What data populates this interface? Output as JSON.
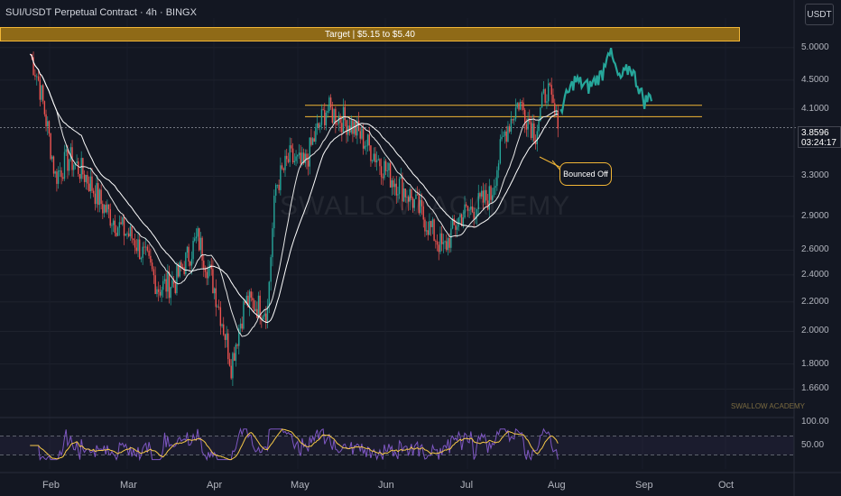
{
  "header": {
    "title": "SUI/USDT Perpetual Contract · 4h · BINGX",
    "currency_button": "USDT"
  },
  "annotations": {
    "target": "Target | $5.15 to $5.40",
    "bounce": "Bounced Off",
    "watermark": "SWALLOW ACADEMY",
    "brand": "SWALLOW ACADEMY"
  },
  "colors": {
    "background": "#131722",
    "up_candle": "#26a69a",
    "down_candle": "#ef5350",
    "target_band": "#f2b636",
    "ma_line": "#ffffff",
    "rsi_line": "#7e57c2",
    "rsi_signal": "#f7c948"
  },
  "current_price": {
    "value": "3.8596",
    "countdown": "03:24:17"
  },
  "chart_data": {
    "type": "line",
    "title": "SUI/USDT Perpetual Contract · 4h · BINGX",
    "x_months": [
      "Feb",
      "Mar",
      "Apr",
      "May",
      "Jun",
      "Jul",
      "Aug",
      "Sep",
      "Oct"
    ],
    "y_ticks": [
      "5.0000",
      "4.5000",
      "4.1000",
      "3.3000",
      "2.9000",
      "2.6000",
      "2.4000",
      "2.2000",
      "2.0000",
      "1.8000",
      "1.6600"
    ],
    "log_scale": true,
    "price_path": [
      {
        "x": "Jan 25",
        "y": 4.9
      },
      {
        "x": "Jan 28",
        "y": 4.5
      },
      {
        "x": "Feb 3",
        "y": 3.3
      },
      {
        "x": "Feb 8",
        "y": 3.5
      },
      {
        "x": "Feb 14",
        "y": 3.3
      },
      {
        "x": "Feb 20",
        "y": 3.0
      },
      {
        "x": "Feb 26",
        "y": 2.8
      },
      {
        "x": "Mar 3",
        "y": 2.7
      },
      {
        "x": "Mar 8",
        "y": 2.5
      },
      {
        "x": "Mar 12",
        "y": 2.3
      },
      {
        "x": "Mar 18",
        "y": 2.35
      },
      {
        "x": "Mar 26",
        "y": 2.7
      },
      {
        "x": "Apr 1",
        "y": 2.3
      },
      {
        "x": "Apr 7",
        "y": 1.8
      },
      {
        "x": "Apr 12",
        "y": 2.2
      },
      {
        "x": "Apr 20",
        "y": 2.15
      },
      {
        "x": "Apr 23",
        "y": 3.2
      },
      {
        "x": "Apr 28",
        "y": 3.5
      },
      {
        "x": "May 3",
        "y": 3.4
      },
      {
        "x": "May 11",
        "y": 4.1
      },
      {
        "x": "May 20",
        "y": 3.9
      },
      {
        "x": "May 27",
        "y": 3.6
      },
      {
        "x": "Jun 3",
        "y": 3.3
      },
      {
        "x": "Jun 10",
        "y": 3.1
      },
      {
        "x": "Jun 17",
        "y": 2.8
      },
      {
        "x": "Jun 22",
        "y": 2.6
      },
      {
        "x": "Jun 28",
        "y": 2.9
      },
      {
        "x": "Jul 4",
        "y": 3.0
      },
      {
        "x": "Jul 9",
        "y": 3.1
      },
      {
        "x": "Jul 14",
        "y": 3.8
      },
      {
        "x": "Jul 19",
        "y": 4.2
      },
      {
        "x": "Jul 25",
        "y": 3.8
      },
      {
        "x": "Jul 29",
        "y": 4.4
      },
      {
        "x": "Aug 2",
        "y": 3.85
      }
    ],
    "projection_path": [
      {
        "x": "Aug 3",
        "y": 4.1
      },
      {
        "x": "Aug 8",
        "y": 4.5
      },
      {
        "x": "Aug 13",
        "y": 4.4
      },
      {
        "x": "Aug 18",
        "y": 4.6
      },
      {
        "x": "Aug 20",
        "y": 5.0
      },
      {
        "x": "Aug 24",
        "y": 4.5
      },
      {
        "x": "Aug 28",
        "y": 4.7
      },
      {
        "x": "Sep 2",
        "y": 4.2
      },
      {
        "x": "Sep 5",
        "y": 4.3
      }
    ],
    "resistance_zone": {
      "upper": 4.15,
      "lower": 4.0
    },
    "target_zone": {
      "lower": 5.15,
      "upper": 5.4
    },
    "rsi": {
      "ticks": [
        "100.00",
        "50.00"
      ],
      "bands": [
        70,
        30
      ]
    }
  }
}
